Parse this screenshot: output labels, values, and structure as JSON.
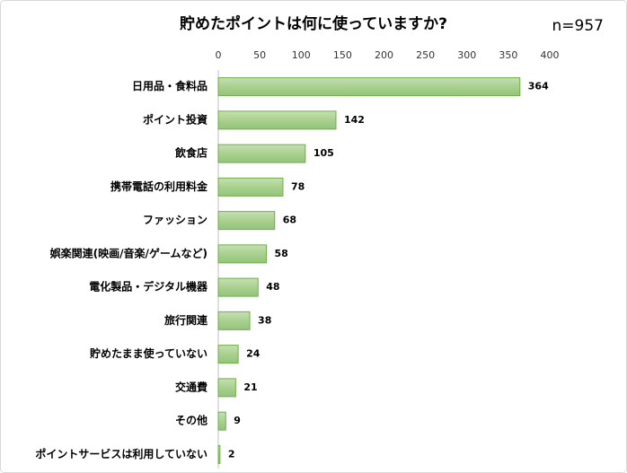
{
  "chart_data": {
    "type": "barh",
    "title": "貯めたポイントは何に使っていますか?",
    "annotation": "n=957",
    "categories": [
      "日用品・食料品",
      "ポイント投資",
      "飲食店",
      "携帯電話の利用料金",
      "ファッション",
      "娯楽関連(映画/音楽/ゲームなど)",
      "電化製品・デジタル機器",
      "旅行関連",
      "貯めたまま使っていない",
      "交通費",
      "その他",
      "ポイントサービスは利用していない"
    ],
    "values": [
      364,
      142,
      105,
      78,
      68,
      58,
      48,
      38,
      24,
      21,
      9,
      2
    ],
    "color": "#a9d18e",
    "edge_color": "#70ad47",
    "xlim": [
      0,
      400
    ],
    "xticks": [
      0,
      50,
      100,
      150,
      200,
      250,
      300,
      350,
      400
    ],
    "grid": false
  }
}
